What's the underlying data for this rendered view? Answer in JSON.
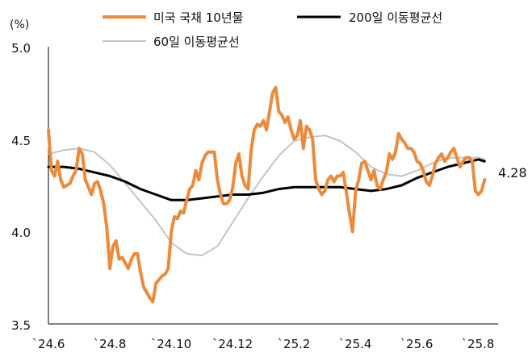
{
  "chart_data": {
    "type": "line",
    "unit_label": "(%)",
    "ylim": [
      3.5,
      5.0
    ],
    "y_ticks": [
      "5.0",
      "4.5",
      "4.0",
      "3.5"
    ],
    "y_tick_values": [
      5.0,
      4.5,
      4.0,
      3.5
    ],
    "x_range": [
      0,
      14.3
    ],
    "x_ticks": [
      "`24.6",
      "`24.8",
      "`24.10",
      "`24.12",
      "`25.2",
      "`25.4",
      "`25.6",
      "`25.8"
    ],
    "x_tick_values": [
      0,
      2,
      4,
      6,
      8,
      10,
      12,
      14
    ],
    "end_label": "4.28",
    "legend_position": "top",
    "series": [
      {
        "name": "미국 국채 10년물",
        "color": "#ed8a3a",
        "width": 4,
        "x": [
          0,
          0.1,
          0.2,
          0.3,
          0.4,
          0.5,
          0.6,
          0.7,
          0.8,
          0.9,
          1.0,
          1.1,
          1.2,
          1.3,
          1.4,
          1.5,
          1.6,
          1.7,
          1.8,
          1.9,
          2.0,
          2.1,
          2.2,
          2.3,
          2.4,
          2.5,
          2.6,
          2.7,
          2.8,
          2.9,
          3.0,
          3.1,
          3.2,
          3.3,
          3.4,
          3.5,
          3.6,
          3.7,
          3.8,
          3.9,
          4.0,
          4.1,
          4.2,
          4.3,
          4.4,
          4.5,
          4.6,
          4.7,
          4.8,
          4.9,
          5.0,
          5.1,
          5.2,
          5.3,
          5.4,
          5.5,
          5.6,
          5.7,
          5.8,
          5.9,
          6.0,
          6.1,
          6.2,
          6.3,
          6.4,
          6.5,
          6.6,
          6.7,
          6.8,
          6.9,
          7.0,
          7.1,
          7.2,
          7.3,
          7.4,
          7.5,
          7.6,
          7.7,
          7.8,
          7.9,
          8.0,
          8.1,
          8.2,
          8.3,
          8.4,
          8.5,
          8.6,
          8.7,
          8.8,
          8.9,
          9.0,
          9.1,
          9.2,
          9.3,
          9.4,
          9.5,
          9.6,
          9.7,
          9.8,
          9.9,
          10.0,
          10.1,
          10.2,
          10.3,
          10.4,
          10.5,
          10.6,
          10.7,
          10.8,
          10.9,
          11.0,
          11.1,
          11.2,
          11.3,
          11.4,
          11.5,
          11.6,
          11.7,
          11.8,
          11.9,
          12.0,
          12.1,
          12.2,
          12.3,
          12.4,
          12.5,
          12.6,
          12.7,
          12.8,
          12.9,
          13.0,
          13.1,
          13.2,
          13.3,
          13.4,
          13.5,
          13.6,
          13.7,
          13.8,
          13.9,
          14.0,
          14.1,
          14.2
        ],
        "values": [
          4.55,
          4.33,
          4.3,
          4.38,
          4.28,
          4.24,
          4.25,
          4.26,
          4.3,
          4.33,
          4.45,
          4.42,
          4.28,
          4.24,
          4.2,
          4.26,
          4.27,
          4.22,
          4.15,
          4.02,
          3.8,
          3.92,
          3.95,
          3.85,
          3.86,
          3.83,
          3.8,
          3.85,
          3.88,
          3.88,
          3.78,
          3.7,
          3.67,
          3.64,
          3.62,
          3.72,
          3.74,
          3.76,
          3.77,
          3.8,
          4.0,
          4.08,
          4.07,
          4.11,
          4.1,
          4.17,
          4.23,
          4.25,
          4.33,
          4.28,
          4.37,
          4.41,
          4.43,
          4.43,
          4.43,
          4.28,
          4.2,
          4.15,
          4.15,
          4.17,
          4.24,
          4.37,
          4.42,
          4.3,
          4.25,
          4.23,
          4.44,
          4.55,
          4.58,
          4.57,
          4.6,
          4.55,
          4.65,
          4.75,
          4.78,
          4.65,
          4.63,
          4.59,
          4.62,
          4.55,
          4.5,
          4.52,
          4.6,
          4.45,
          4.57,
          4.55,
          4.5,
          4.28,
          4.23,
          4.2,
          4.22,
          4.28,
          4.3,
          4.27,
          4.3,
          4.3,
          4.32,
          4.21,
          4.1,
          4.0,
          4.22,
          4.28,
          4.37,
          4.38,
          4.33,
          4.28,
          4.33,
          4.25,
          4.23,
          4.28,
          4.32,
          4.42,
          4.39,
          4.43,
          4.53,
          4.5,
          4.48,
          4.45,
          4.45,
          4.43,
          4.38,
          4.37,
          4.33,
          4.27,
          4.25,
          4.3,
          4.37,
          4.4,
          4.42,
          4.38,
          4.4,
          4.43,
          4.45,
          4.4,
          4.35,
          4.38,
          4.4,
          4.4,
          4.38,
          4.22,
          4.2,
          4.22,
          4.28
        ]
      },
      {
        "name": "200일 이동평균선",
        "color": "#000000",
        "width": 3,
        "x": [
          0,
          0.5,
          1.0,
          1.5,
          2.0,
          2.5,
          3.0,
          3.5,
          4.0,
          4.5,
          5.0,
          5.5,
          6.0,
          6.5,
          7.0,
          7.5,
          8.0,
          8.5,
          9.0,
          9.5,
          10.0,
          10.5,
          11.0,
          11.5,
          12.0,
          12.5,
          13.0,
          13.5,
          14.0,
          14.2
        ],
        "values": [
          4.35,
          4.35,
          4.34,
          4.32,
          4.3,
          4.27,
          4.23,
          4.2,
          4.17,
          4.17,
          4.18,
          4.19,
          4.2,
          4.2,
          4.21,
          4.23,
          4.24,
          4.24,
          4.24,
          4.24,
          4.23,
          4.22,
          4.23,
          4.25,
          4.29,
          4.32,
          4.35,
          4.37,
          4.39,
          4.38
        ]
      },
      {
        "name": "60일 이동평균선",
        "color": "#c4c4c4",
        "width": 2,
        "x": [
          0,
          0.5,
          1.0,
          1.5,
          2.0,
          2.5,
          3.0,
          3.5,
          4.0,
          4.5,
          5.0,
          5.5,
          6.0,
          6.5,
          7.0,
          7.5,
          8.0,
          8.5,
          9.0,
          9.5,
          10.0,
          10.5,
          11.0,
          11.5,
          12.0,
          12.5,
          13.0,
          13.5,
          14.0,
          14.2
        ],
        "values": [
          4.42,
          4.44,
          4.45,
          4.43,
          4.36,
          4.26,
          4.16,
          4.06,
          3.94,
          3.88,
          3.87,
          3.92,
          4.05,
          4.18,
          4.3,
          4.41,
          4.49,
          4.51,
          4.52,
          4.49,
          4.43,
          4.35,
          4.31,
          4.3,
          4.33,
          4.37,
          4.4,
          4.4,
          4.4,
          4.39
        ]
      }
    ]
  }
}
